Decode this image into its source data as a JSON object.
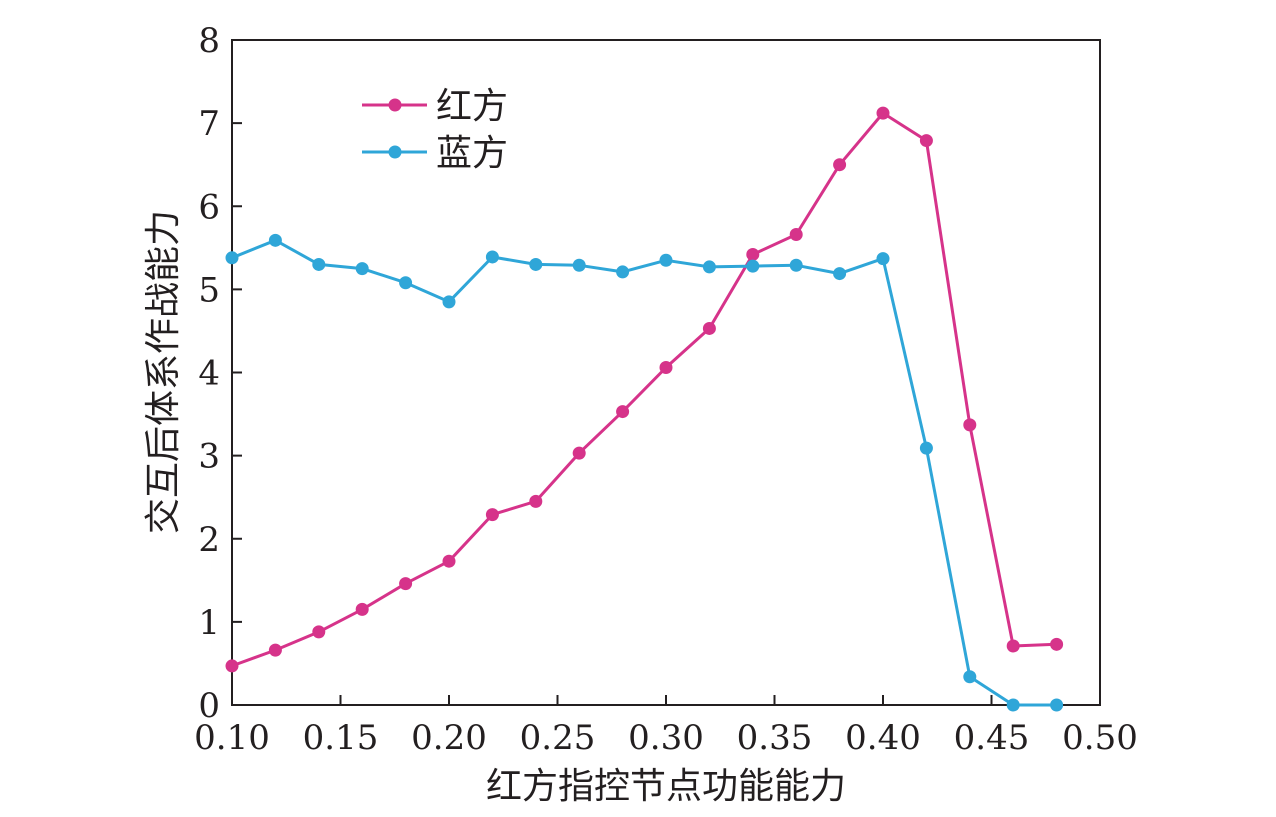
{
  "chart_data": {
    "type": "line",
    "xlabel": "红方指控节点功能能力",
    "ylabel": "交互后体系作战能力",
    "xlim": [
      0.1,
      0.5
    ],
    "ylim": [
      0,
      8
    ],
    "x_ticks": [
      "0.10",
      "0.15",
      "0.20",
      "0.25",
      "0.30",
      "0.35",
      "0.40",
      "0.45",
      "0.50"
    ],
    "y_ticks": [
      "0",
      "1",
      "2",
      "3",
      "4",
      "5",
      "6",
      "7",
      "8"
    ],
    "grid": false,
    "legend_position": "top-left",
    "series": [
      {
        "name": "红方",
        "color": "#d6338a",
        "x": [
          0.1,
          0.12,
          0.14,
          0.16,
          0.18,
          0.2,
          0.22,
          0.24,
          0.26,
          0.28,
          0.3,
          0.32,
          0.34,
          0.36,
          0.38,
          0.4,
          0.42,
          0.44,
          0.46,
          0.48
        ],
        "y": [
          0.47,
          0.66,
          0.88,
          1.15,
          1.46,
          1.73,
          2.29,
          2.45,
          3.03,
          3.53,
          4.06,
          4.53,
          5.42,
          5.66,
          6.5,
          7.12,
          6.79,
          3.37,
          0.71,
          0.73
        ]
      },
      {
        "name": "蓝方",
        "color": "#2fa6d8",
        "x": [
          0.1,
          0.12,
          0.14,
          0.16,
          0.18,
          0.2,
          0.22,
          0.24,
          0.26,
          0.28,
          0.3,
          0.32,
          0.34,
          0.36,
          0.38,
          0.4,
          0.42,
          0.44,
          0.46,
          0.48
        ],
        "y": [
          5.38,
          5.59,
          5.3,
          5.25,
          5.08,
          4.85,
          5.39,
          5.3,
          5.29,
          5.21,
          5.35,
          5.27,
          5.28,
          5.29,
          5.19,
          5.37,
          3.09,
          0.34,
          0.0,
          0.0
        ]
      }
    ]
  }
}
